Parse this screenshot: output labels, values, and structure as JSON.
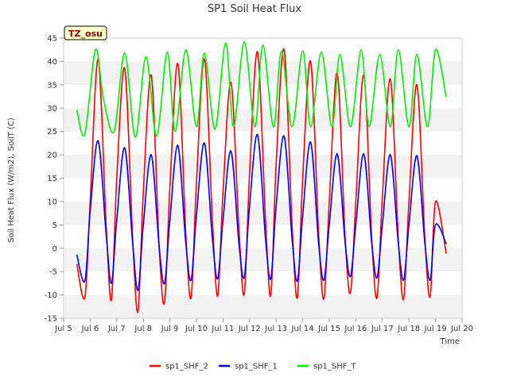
{
  "chart_data": {
    "type": "line",
    "title": "SP1 Soil Heat Flux",
    "xlabel": "Time",
    "ylabel": "Soil Heat Flux (W/m2), SoilT (C)",
    "badge": "TZ_osu",
    "xlim": [
      5,
      20
    ],
    "ylim": [
      -15,
      45
    ],
    "x_ticks": [
      5,
      6,
      7,
      8,
      9,
      10,
      11,
      12,
      13,
      14,
      15,
      16,
      17,
      18,
      19,
      20
    ],
    "x_tick_labels": [
      "Jul 5",
      "Jul 6",
      "Jul 7",
      "Jul 8",
      "Jul 9",
      "Jul 10",
      "Jul 11",
      "Jul 12",
      "Jul 13",
      "Jul 14",
      "Jul 15",
      "Jul 16",
      "Jul 17",
      "Jul 18",
      "Jul 19",
      "Jul 20"
    ],
    "y_ticks": [
      -15,
      -10,
      -5,
      0,
      5,
      10,
      15,
      20,
      25,
      30,
      35,
      40,
      45
    ],
    "y_tick_labels": [
      "-15",
      "-10",
      "-5",
      "0",
      "5",
      "10",
      "15",
      "20",
      "25",
      "30",
      "35",
      "40",
      "45"
    ],
    "grid": "horizontal bands",
    "legend_position": "bottom",
    "series": [
      {
        "name": "sp1_SHF_2",
        "color": "#ff0000",
        "x": [
          5.5,
          5.8,
          6.0,
          6.3,
          6.6,
          6.8,
          7.0,
          7.3,
          7.6,
          7.8,
          8.0,
          8.3,
          8.6,
          8.8,
          9.0,
          9.3,
          9.6,
          9.8,
          10.0,
          10.3,
          10.6,
          10.8,
          11.0,
          11.3,
          11.6,
          11.8,
          12.0,
          12.3,
          12.6,
          12.8,
          13.0,
          13.3,
          13.6,
          13.8,
          14.0,
          14.3,
          14.6,
          14.8,
          15.0,
          15.3,
          15.6,
          15.8,
          16.0,
          16.3,
          16.6,
          16.8,
          17.0,
          17.3,
          17.6,
          17.8,
          18.0,
          18.3,
          18.6,
          18.8,
          19.0,
          19.4
        ],
        "y": [
          -3.5,
          -10.5,
          10,
          40.5,
          5,
          -11,
          15,
          38.5,
          2,
          -13.5,
          12,
          37,
          0,
          -11.5,
          13,
          39.5,
          3,
          -10.5,
          14,
          40.5,
          6,
          -10.2,
          12,
          35.5,
          4,
          -9.8,
          16,
          42,
          6,
          -10,
          18,
          42.5,
          5,
          -10.5,
          15,
          40,
          3,
          -10.8,
          10,
          37.5,
          2,
          -9.5,
          10,
          37,
          2,
          -10.5,
          11,
          36.2,
          2,
          -10.8,
          10,
          35,
          2,
          -10.3,
          10,
          -1
        ]
      },
      {
        "name": "sp1_SHF_1",
        "color": "#0000ff",
        "x": [
          5.5,
          5.8,
          6.0,
          6.3,
          6.6,
          6.8,
          7.0,
          7.3,
          7.6,
          7.8,
          8.0,
          8.3,
          8.6,
          8.8,
          9.0,
          9.3,
          9.6,
          9.8,
          10.0,
          10.3,
          10.6,
          10.8,
          11.0,
          11.3,
          11.6,
          11.8,
          12.0,
          12.3,
          12.6,
          12.8,
          13.0,
          13.3,
          13.6,
          13.8,
          14.0,
          14.3,
          14.6,
          14.8,
          15.0,
          15.3,
          15.6,
          15.8,
          16.0,
          16.3,
          16.6,
          16.8,
          17.0,
          17.3,
          17.6,
          17.8,
          18.0,
          18.3,
          18.6,
          18.8,
          19.0,
          19.4
        ],
        "y": [
          -1.5,
          -7,
          8,
          23,
          3,
          -7.5,
          6,
          21.5,
          1,
          -9,
          5,
          20,
          0,
          -7.5,
          6,
          22,
          1,
          -6.8,
          7,
          22.5,
          2,
          -6.5,
          6,
          20.8,
          1,
          -6.2,
          9,
          24.3,
          2,
          -6.5,
          9,
          24,
          2,
          -7,
          7,
          22.7,
          1,
          -6.8,
          5,
          20.2,
          1,
          -6,
          5,
          20.2,
          1,
          -6.3,
          5,
          20,
          1,
          -6.8,
          5,
          19.8,
          1,
          -6.8,
          5,
          1
        ]
      },
      {
        "name": "sp1_SHF_T",
        "color": "#00ee00",
        "x": [
          5.5,
          5.8,
          6.2,
          6.5,
          6.9,
          7.3,
          7.7,
          8.1,
          8.5,
          8.9,
          9.2,
          9.6,
          10.0,
          10.3,
          10.7,
          11.1,
          11.4,
          11.8,
          12.2,
          12.5,
          12.9,
          13.2,
          13.6,
          14.0,
          14.3,
          14.7,
          15.1,
          15.4,
          15.8,
          16.2,
          16.5,
          16.9,
          17.3,
          17.6,
          18.0,
          18.3,
          18.7,
          19.0,
          19.4
        ],
        "y": [
          29.5,
          24.5,
          42.5,
          32,
          25,
          41.8,
          23.8,
          41,
          24,
          42,
          25,
          42.5,
          26,
          41.8,
          25.5,
          44,
          26,
          44.2,
          26,
          43.5,
          26,
          42.2,
          26,
          42.3,
          26,
          42,
          26,
          41.5,
          26,
          42.5,
          26,
          41.5,
          26,
          42.5,
          26,
          41.5,
          26,
          42.5,
          32.5
        ]
      }
    ]
  }
}
